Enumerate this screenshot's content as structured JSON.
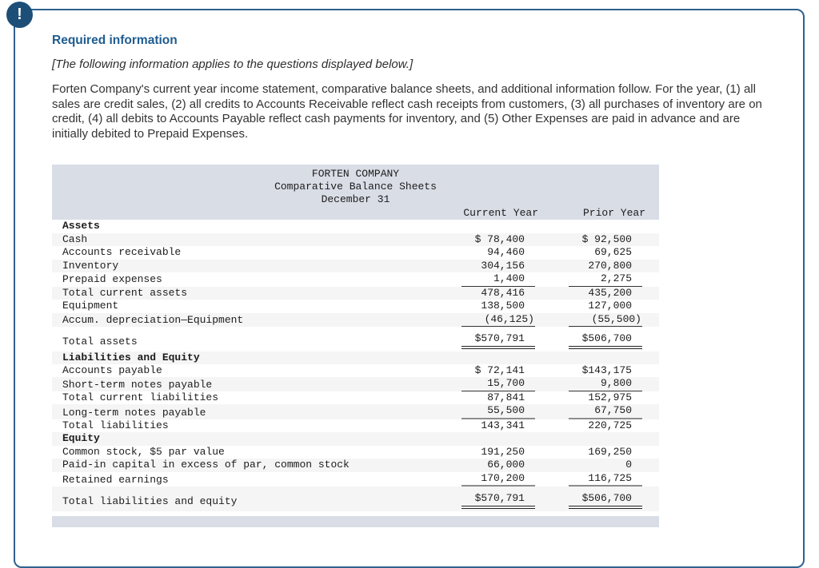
{
  "alert": {
    "glyph": "!"
  },
  "colors": {
    "accent_blue": "#2f618f",
    "heading_blue": "#1e5c90",
    "icon_navy": "#1d4e78",
    "table_band": "#d9dde6",
    "row_stripe": "#f5f5f6"
  },
  "header": {
    "title": "Required information",
    "subtitle": "[The following information applies to the questions displayed below.]",
    "paragraph": "Forten Company's current year income statement, comparative balance sheets, and additional information follow. For the year, (1) all sales are credit sales, (2) all credits to Accounts Receivable reflect cash receipts from customers, (3) all purchases of inventory are on credit, (4) all debits to Accounts Payable reflect cash payments for inventory, and (5) Other Expenses are paid in advance and are initially debited to Prepaid Expenses."
  },
  "table": {
    "title_lines": [
      "FORTEN COMPANY",
      "Comparative Balance Sheets",
      "December 31"
    ],
    "columns": [
      "Current Year",
      "Prior Year"
    ],
    "rows": [
      {
        "label": "Assets",
        "cy": "",
        "py": "",
        "kind": "section",
        "underline": "none"
      },
      {
        "label": "Cash",
        "cy": "$ 78,400",
        "py": "$ 92,500",
        "kind": "item",
        "underline": "none"
      },
      {
        "label": "Accounts receivable",
        "cy": "94,460",
        "py": "69,625",
        "kind": "item",
        "underline": "none"
      },
      {
        "label": "Inventory",
        "cy": "304,156",
        "py": "270,800",
        "kind": "item",
        "underline": "none"
      },
      {
        "label": "Prepaid expenses",
        "cy": "1,400",
        "py": "2,275",
        "kind": "item",
        "underline": "single"
      },
      {
        "label": "Total current assets",
        "cy": "478,416",
        "py": "435,200",
        "kind": "item",
        "underline": "none"
      },
      {
        "label": "Equipment",
        "cy": "138,500",
        "py": "127,000",
        "kind": "item",
        "underline": "none"
      },
      {
        "label": "Accum. depreciation—Equipment",
        "cy": "(46,125)",
        "py": "(55,500)",
        "kind": "item",
        "underline": "single"
      },
      {
        "label": "Total assets",
        "cy": "$570,791",
        "py": "$506,700",
        "kind": "total",
        "underline": "double"
      },
      {
        "label": "Liabilities and Equity",
        "cy": "",
        "py": "",
        "kind": "section",
        "underline": "none"
      },
      {
        "label": "Accounts payable",
        "cy": "$ 72,141",
        "py": "$143,175",
        "kind": "item",
        "underline": "none"
      },
      {
        "label": "Short-term notes payable",
        "cy": "15,700",
        "py": "9,800",
        "kind": "item",
        "underline": "single"
      },
      {
        "label": "Total current liabilities",
        "cy": "87,841",
        "py": "152,975",
        "kind": "item",
        "underline": "none"
      },
      {
        "label": "Long-term notes payable",
        "cy": "55,500",
        "py": "67,750",
        "kind": "item",
        "underline": "thick"
      },
      {
        "label": "Total liabilities",
        "cy": "143,341",
        "py": "220,725",
        "kind": "item",
        "underline": "none"
      },
      {
        "label": "Equity",
        "cy": "",
        "py": "",
        "kind": "section",
        "underline": "none"
      },
      {
        "label": "Common stock, $5 par value",
        "cy": "191,250",
        "py": "169,250",
        "kind": "item",
        "underline": "none"
      },
      {
        "label": "Paid-in capital in excess of par, common stock",
        "cy": "66,000",
        "py": "0",
        "kind": "item",
        "underline": "none"
      },
      {
        "label": "Retained earnings",
        "cy": "170,200",
        "py": "116,725",
        "kind": "item",
        "underline": "thick"
      },
      {
        "label": "Total liabilities and equity",
        "cy": "$570,791",
        "py": "$506,700",
        "kind": "total",
        "underline": "double"
      }
    ]
  }
}
